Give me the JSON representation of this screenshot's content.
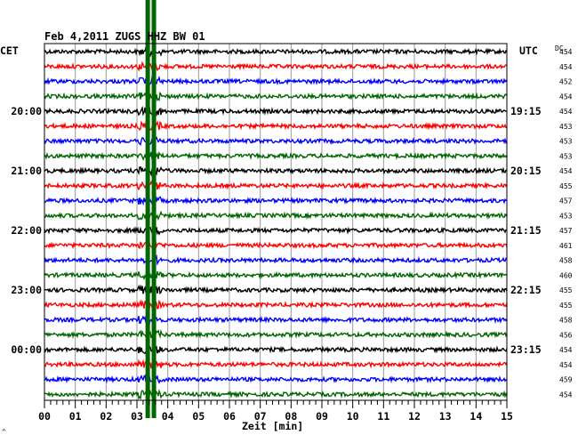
{
  "chart_data": {
    "type": "line",
    "title": "Feb 4,2011   ZUGS HHZ BW 01",
    "left_label": "CET",
    "right_label": "UTC",
    "dc_label": "DC",
    "xlabel": "Zeit [min]",
    "xlim": [
      0,
      15
    ],
    "x_ticks": [
      "00",
      "01",
      "02",
      "03",
      "04",
      "05",
      "06",
      "07",
      "08",
      "09",
      "10",
      "11",
      "12",
      "13",
      "14",
      "15"
    ],
    "trace_colors": [
      "#000000",
      "#ff0000",
      "#0000ff",
      "#006600"
    ],
    "cet_hour_labels": [
      {
        "trace": 4,
        "text": "20:00"
      },
      {
        "trace": 8,
        "text": "21:00"
      },
      {
        "trace": 12,
        "text": "22:00"
      },
      {
        "trace": 16,
        "text": "23:00"
      },
      {
        "trace": 20,
        "text": "00:00"
      }
    ],
    "utc_hour_labels": [
      {
        "trace": 4,
        "text": "19:15"
      },
      {
        "trace": 8,
        "text": "20:15"
      },
      {
        "trace": 12,
        "text": "21:15"
      },
      {
        "trace": 16,
        "text": "22:15"
      },
      {
        "trace": 20,
        "text": "23:15"
      }
    ],
    "dc_values": [
      "454",
      "454",
      "452",
      "454",
      "454",
      "453",
      "453",
      "453",
      "454",
      "455",
      "457",
      "453",
      "457",
      "461",
      "458",
      "460",
      "455",
      "455",
      "458",
      "456",
      "454",
      "454",
      "459",
      "454"
    ],
    "event_markers": [
      {
        "x": 3.35
      },
      {
        "x": 3.55
      }
    ],
    "event_color": "#006600",
    "footer_mark": "^"
  }
}
